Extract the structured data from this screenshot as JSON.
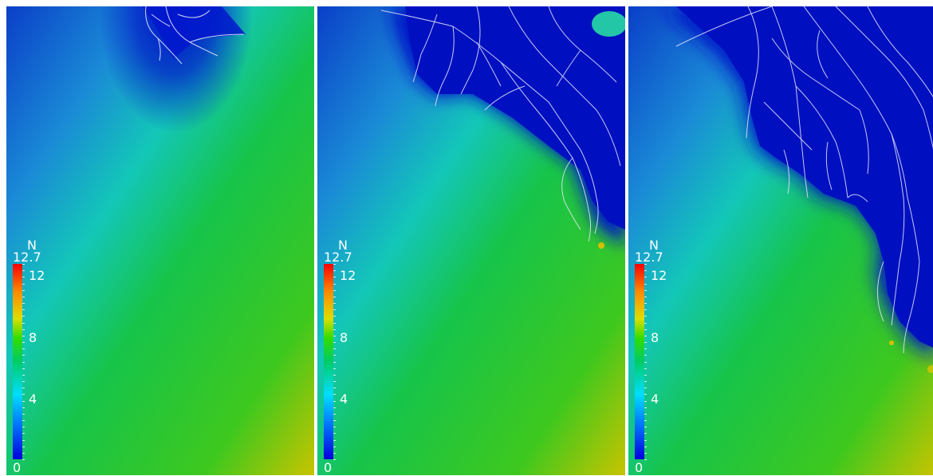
{
  "colorbar": {
    "title": "N",
    "max_label": "12.7",
    "ticks": [
      "12",
      "8",
      "4",
      "0"
    ],
    "colors": [
      "#0000dd",
      "#0077ff",
      "#00ddff",
      "#00cc66",
      "#33dd00",
      "#dddd00",
      "#ff8800",
      "#ff0000"
    ]
  },
  "panels": [
    {
      "colorbar": {
        "title": "N",
        "max_label": "12.7",
        "t12": "12",
        "t8": "8",
        "t4": "4",
        "t0": "0"
      }
    },
    {
      "colorbar": {
        "title": "N",
        "max_label": "12.7",
        "t12": "12",
        "t8": "8",
        "t4": "4",
        "t0": "0"
      }
    },
    {
      "colorbar": {
        "title": "N",
        "max_label": "12.7",
        "t12": "12",
        "t8": "8",
        "t4": "4",
        "t0": "0"
      }
    }
  ]
}
